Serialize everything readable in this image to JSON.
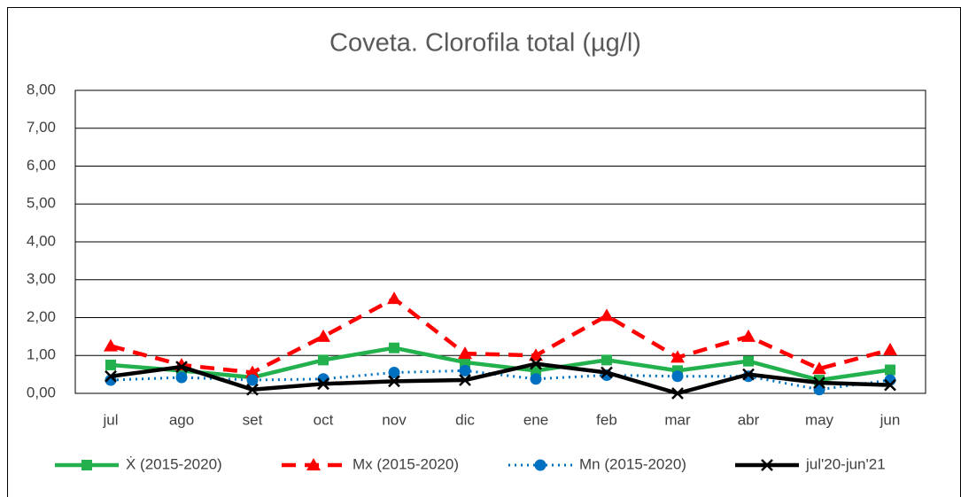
{
  "chart_data": {
    "type": "line",
    "title": "Coveta. Clorofila total (µg/l)",
    "categories": [
      "jul",
      "ago",
      "set",
      "oct",
      "nov",
      "dic",
      "ene",
      "feb",
      "mar",
      "abr",
      "may",
      "jun"
    ],
    "series": [
      {
        "name": "Ẋ (2015-2020)",
        "color": "#22b14c",
        "marker": "square",
        "dash": "solid",
        "values": [
          0.75,
          0.6,
          0.42,
          0.88,
          1.2,
          0.82,
          0.6,
          0.88,
          0.6,
          0.85,
          0.35,
          0.62
        ]
      },
      {
        "name": "Mx (2015-2020)",
        "color": "#ff0000",
        "marker": "triangle",
        "dash": "dashed",
        "values": [
          1.25,
          0.75,
          0.55,
          1.5,
          2.5,
          1.05,
          1.0,
          2.05,
          0.95,
          1.5,
          0.65,
          1.15
        ]
      },
      {
        "name": "Mn (2015-2020)",
        "color": "#0070c0",
        "marker": "circle",
        "dash": "dotted",
        "values": [
          0.35,
          0.42,
          0.35,
          0.38,
          0.55,
          0.6,
          0.38,
          0.48,
          0.45,
          0.45,
          0.1,
          0.35
        ]
      },
      {
        "name": "jul'20-jun'21",
        "color": "#000000",
        "marker": "x",
        "dash": "solid",
        "values": [
          0.45,
          0.7,
          0.1,
          0.25,
          0.32,
          0.35,
          0.78,
          0.55,
          0.0,
          0.5,
          0.28,
          0.22
        ]
      }
    ],
    "ylim": [
      0,
      8
    ],
    "yticks": [
      {
        "value": 0,
        "label": "0,00"
      },
      {
        "value": 1,
        "label": "1,00"
      },
      {
        "value": 2,
        "label": "2,00"
      },
      {
        "value": 3,
        "label": "3,00"
      },
      {
        "value": 4,
        "label": "4,00"
      },
      {
        "value": 5,
        "label": "5,00"
      },
      {
        "value": 6,
        "label": "6,00"
      },
      {
        "value": 7,
        "label": "7,00"
      },
      {
        "value": 8,
        "label": "8,00"
      }
    ],
    "grid": true,
    "legend": "bottom"
  }
}
